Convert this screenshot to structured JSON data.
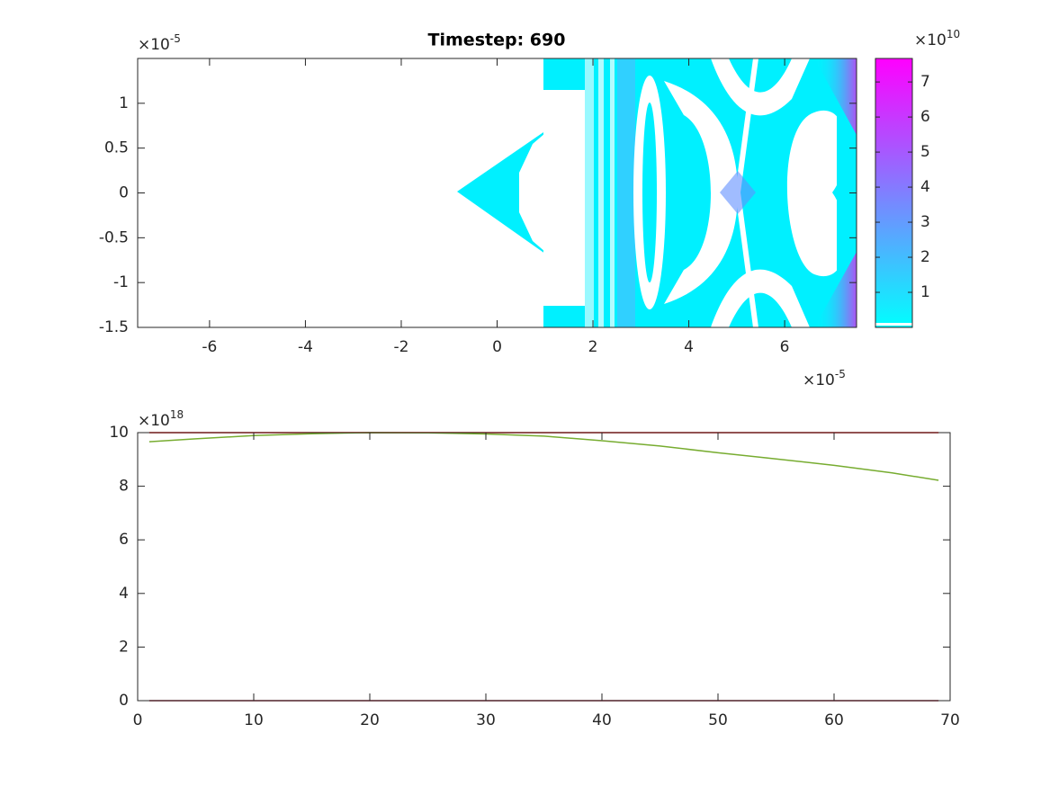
{
  "chart_data": [
    {
      "type": "heatmap",
      "title": "Timestep: 690",
      "xlim": [
        -7.5,
        7.5
      ],
      "ylim": [
        -1.5,
        1.5
      ],
      "xticks": [
        -6,
        -4,
        -2,
        0,
        2,
        4,
        6
      ],
      "yticks": [
        -1.5,
        -1,
        -0.5,
        0,
        0.5,
        1
      ],
      "x_multiplier": {
        "base": "×10",
        "exponent": "-5"
      },
      "y_multiplier": {
        "base": "×10",
        "exponent": "-5"
      },
      "colorbar": {
        "clim": [
          0,
          7.67
        ],
        "ticks": [
          1,
          2,
          3,
          4,
          5,
          6,
          7
        ],
        "colors": [
          "#00ffff",
          "#ff00ff"
        ],
        "multiplier": {
          "base": "×10",
          "exponent": "10"
        }
      }
    },
    {
      "type": "line",
      "x": [
        1,
        5,
        10,
        15,
        20,
        25,
        30,
        35,
        40,
        45,
        50,
        55,
        60,
        65,
        69
      ],
      "xlim": [
        0,
        70
      ],
      "ylim": [
        0,
        10
      ],
      "xticks": [
        0,
        10,
        20,
        30,
        40,
        50,
        60,
        70
      ],
      "yticks": [
        0,
        2,
        4,
        6,
        8,
        10
      ],
      "y_multiplier": {
        "base": "×10",
        "exponent": "18"
      },
      "series": [
        {
          "color": "#ff0000",
          "values": [
            10,
            10,
            10,
            10,
            10,
            10,
            10,
            10,
            10,
            10,
            10,
            10,
            10,
            10,
            10
          ]
        },
        {
          "color": "#77ac30",
          "values": [
            9.66,
            9.77,
            9.89,
            9.96,
            10,
            9.99,
            9.95,
            9.87,
            9.7,
            9.5,
            9.25,
            9.02,
            8.78,
            8.5,
            8.22
          ]
        },
        {
          "color": "#a2142f",
          "values": [
            0,
            0,
            0,
            0,
            0,
            0,
            0,
            0,
            0,
            0,
            0,
            0,
            0,
            0,
            0
          ]
        }
      ]
    }
  ]
}
